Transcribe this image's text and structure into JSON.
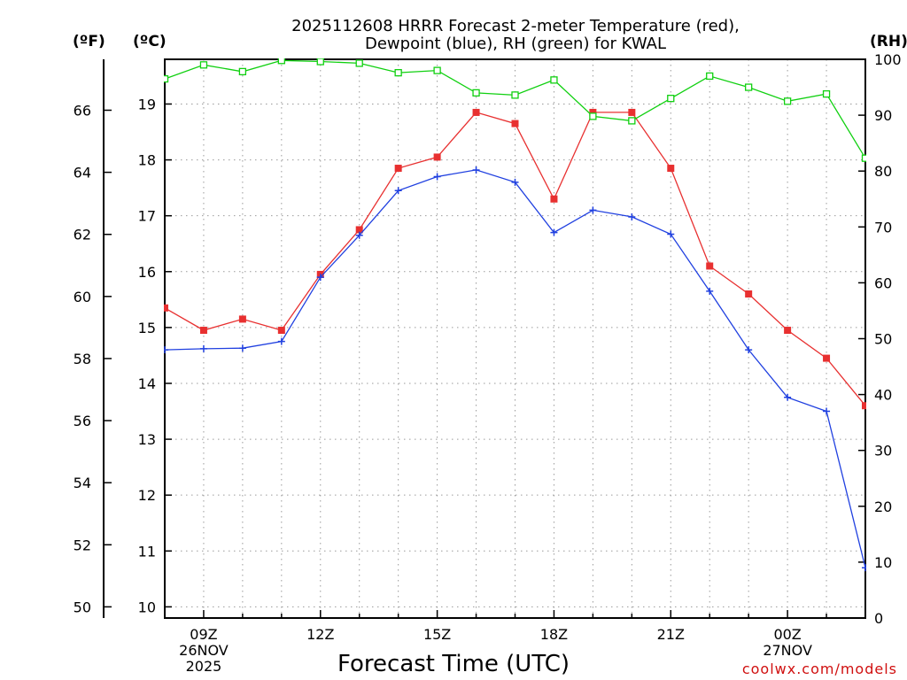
{
  "chart_data": {
    "type": "line",
    "title_line1": "2025112608 HRRR Forecast 2-meter Temperature (red),",
    "title_line2": "Dewpoint (blue), RH (green) for KWAL",
    "xlabel": "Forecast Time (UTC)",
    "credit": "coolwx.com/models",
    "unit_f": "(ºF)",
    "unit_c": "(ºC)",
    "unit_rh": "(RH)",
    "x_hours": [
      8,
      9,
      10,
      11,
      12,
      13,
      14,
      15,
      16,
      17,
      18,
      19,
      20,
      21,
      22,
      23,
      24,
      25,
      26
    ],
    "x_ticks": [
      {
        "hour": 9,
        "label": "09Z",
        "sub1": "26NOV",
        "sub2": "2025"
      },
      {
        "hour": 12,
        "label": "12Z"
      },
      {
        "hour": 15,
        "label": "15Z"
      },
      {
        "hour": 18,
        "label": "18Z"
      },
      {
        "hour": 21,
        "label": "21Z"
      },
      {
        "hour": 24,
        "label": "00Z",
        "sub1": "27NOV"
      }
    ],
    "xlim": [
      8,
      26
    ],
    "ylim_c": [
      9.8,
      19.8
    ],
    "ylim_f": [
      49.64,
      67.64
    ],
    "ylim_rh": [
      0,
      100
    ],
    "yticks_c": [
      10,
      11,
      12,
      13,
      14,
      15,
      16,
      17,
      18,
      19
    ],
    "yticks_f": [
      50,
      52,
      54,
      56,
      58,
      60,
      62,
      64,
      66
    ],
    "yticks_rh": [
      0,
      10,
      20,
      30,
      40,
      50,
      60,
      70,
      80,
      90,
      100
    ],
    "series": [
      {
        "name": "Temperature",
        "color": "#e83030",
        "marker": "filled-square",
        "values": [
          15.35,
          14.95,
          15.15,
          14.95,
          15.95,
          16.75,
          17.85,
          18.05,
          18.85,
          18.65,
          17.3,
          18.85,
          18.85,
          17.85,
          16.1,
          15.6,
          14.95,
          14.45,
          13.6
        ]
      },
      {
        "name": "Dewpoint",
        "color": "#2040e0",
        "marker": "plus",
        "values": [
          14.6,
          14.62,
          14.63,
          14.75,
          15.9,
          16.65,
          17.45,
          17.7,
          17.82,
          17.6,
          16.7,
          17.1,
          16.98,
          16.67,
          15.65,
          14.6,
          13.75,
          13.5,
          10.7
        ]
      },
      {
        "name": "Relative Humidity",
        "color": "#10d010",
        "marker": "open-square",
        "values": [
          96.5,
          99.0,
          97.8,
          99.8,
          99.6,
          99.3,
          97.6,
          98.0,
          94.0,
          93.6,
          96.3,
          89.8,
          89.0,
          93.0,
          97.0,
          95.0,
          92.5,
          93.8,
          82.3
        ]
      }
    ]
  }
}
